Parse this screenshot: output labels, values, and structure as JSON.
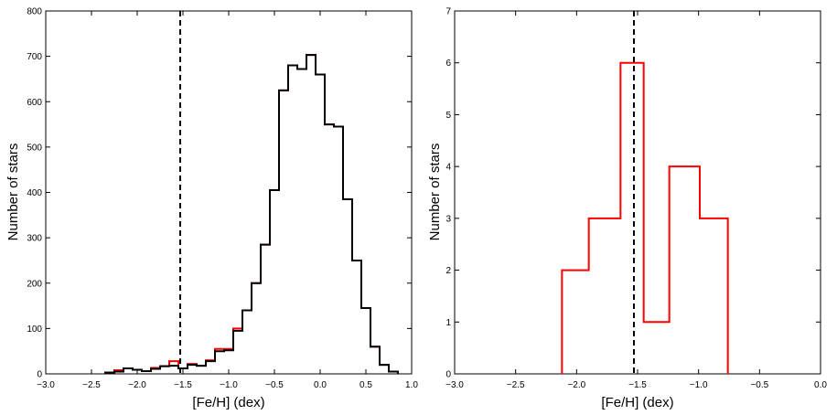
{
  "colors": {
    "black": "#000000",
    "red": "#ff0000",
    "frame": "#000000"
  },
  "chart_data": [
    {
      "type": "histogram",
      "xlabel": "[Fe/H] (dex)",
      "ylabel": "Number of stars",
      "xlim": [
        -3.0,
        1.0
      ],
      "ylim": [
        0,
        800
      ],
      "xticks": [
        -3.0,
        -2.5,
        -2.0,
        -1.5,
        -1.0,
        -0.5,
        0.0,
        0.5,
        1.0
      ],
      "xtick_labels": [
        "−3.0",
        "−2.5",
        "−2.0",
        "−1.5",
        "−1.0",
        "−0.5",
        "0.0",
        "0.5",
        "1.0"
      ],
      "yticks": [
        0,
        100,
        200,
        300,
        400,
        500,
        600,
        700,
        800
      ],
      "ytick_labels": [
        "0",
        "100",
        "200",
        "300",
        "400",
        "500",
        "600",
        "700",
        "800"
      ],
      "reference_line": {
        "x": -1.53,
        "style": "dashed",
        "color": "#000000"
      },
      "series": [
        {
          "color": "#ff0000",
          "bin_edges": [
            -2.35,
            -2.25,
            -2.15,
            -2.05,
            -1.95,
            -1.85,
            -1.75,
            -1.65,
            -1.55,
            -1.45,
            -1.35,
            -1.25,
            -1.15,
            -1.05,
            -0.95,
            -0.85,
            -0.75,
            -0.65,
            -0.55,
            -0.45,
            -0.35,
            -0.25,
            -0.15,
            -0.05,
            0.05,
            0.15,
            0.25,
            0.35,
            0.45,
            0.55,
            0.65,
            0.75,
            0.85
          ],
          "counts": [
            3,
            8,
            12,
            9,
            6,
            13,
            17,
            28,
            12,
            22,
            18,
            30,
            55,
            55,
            100,
            140,
            200,
            285,
            405,
            625,
            680,
            672,
            703,
            660,
            550,
            545,
            385,
            250,
            145,
            60,
            20,
            5
          ]
        },
        {
          "color": "#000000",
          "bin_edges": [
            -2.35,
            -2.25,
            -2.15,
            -2.05,
            -1.95,
            -1.85,
            -1.75,
            -1.65,
            -1.55,
            -1.45,
            -1.35,
            -1.25,
            -1.15,
            -1.05,
            -0.95,
            -0.85,
            -0.75,
            -0.65,
            -0.55,
            -0.45,
            -0.35,
            -0.25,
            -0.15,
            -0.05,
            0.05,
            0.15,
            0.25,
            0.35,
            0.45,
            0.55,
            0.65,
            0.75,
            0.85
          ],
          "counts": [
            3,
            5,
            12,
            9,
            6,
            11,
            17,
            18,
            12,
            20,
            18,
            28,
            50,
            52,
            95,
            140,
            200,
            285,
            405,
            625,
            680,
            672,
            703,
            660,
            550,
            545,
            385,
            250,
            145,
            60,
            20,
            5
          ]
        }
      ]
    },
    {
      "type": "histogram",
      "xlabel": "[Fe/H] (dex)",
      "ylabel": "Number of stars",
      "xlim": [
        -3.0,
        0.0
      ],
      "ylim": [
        0,
        7
      ],
      "xticks": [
        -3.0,
        -2.5,
        -2.0,
        -1.5,
        -1.0,
        -0.5,
        0.0
      ],
      "xtick_labels": [
        "−3.0",
        "−2.5",
        "−2.0",
        "−1.5",
        "−1.0",
        "−0.5",
        "0.0"
      ],
      "yticks": [
        0,
        1,
        2,
        3,
        4,
        5,
        6,
        7
      ],
      "ytick_labels": [
        "0",
        "1",
        "2",
        "3",
        "4",
        "5",
        "6",
        "7"
      ],
      "reference_line": {
        "x": -1.53,
        "style": "dashed",
        "color": "#000000"
      },
      "series": [
        {
          "color": "#ff0000",
          "bin_edges": [
            -2.12,
            -1.9,
            -1.64,
            -1.45,
            -1.24,
            -0.99,
            -0.76
          ],
          "counts": [
            2,
            3,
            6,
            1,
            4,
            3
          ]
        }
      ]
    }
  ]
}
